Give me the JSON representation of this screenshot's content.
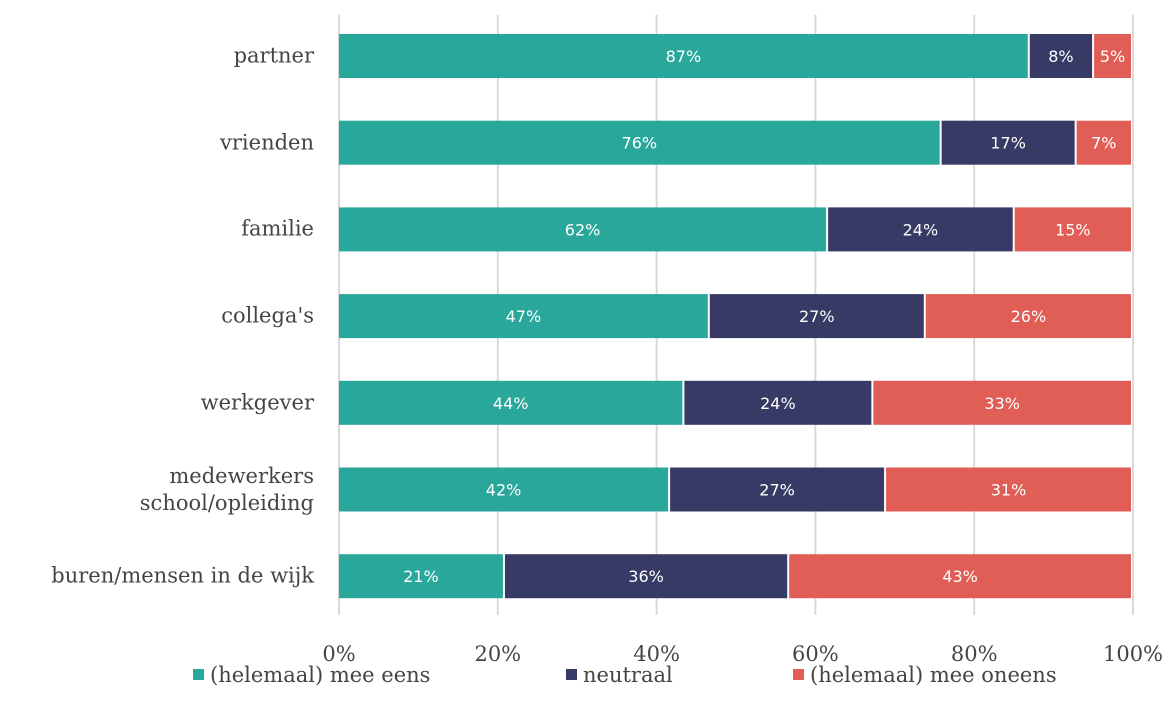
{
  "chart_data": {
    "type": "stacked-bar-horizontal",
    "categories": [
      "partner",
      "vrienden",
      "familie",
      "collega's",
      "werkgever",
      "medewerkers school/opleiding",
      "buren/mensen in de wijk"
    ],
    "series": [
      {
        "name": "(helemaal) mee eens",
        "color": "#2aa79b",
        "values": [
          87.0,
          75.9,
          61.6,
          46.7,
          43.5,
          41.7,
          20.9
        ],
        "value_labels": [
          "87%",
          "76%",
          "62%",
          "47%",
          "44%",
          "42%",
          "21%"
        ]
      },
      {
        "name": "neutraal",
        "color": "#363a64",
        "values": [
          8.1,
          17.0,
          23.5,
          27.2,
          23.8,
          27.2,
          35.8
        ],
        "value_labels": [
          "8%",
          "17%",
          "24%",
          "27%",
          "24%",
          "27%",
          "36%"
        ]
      },
      {
        "name": "(helemaal) mee oneens",
        "color": "#e05e55",
        "values": [
          4.9,
          7.1,
          14.9,
          26.1,
          32.7,
          31.1,
          43.3
        ],
        "value_labels": [
          "5%",
          "7%",
          "15%",
          "26%",
          "33%",
          "31%",
          "43%"
        ]
      }
    ],
    "xlim": [
      0,
      100
    ],
    "xticks": [
      {
        "value": 0,
        "label": "0%"
      },
      {
        "value": 20,
        "label": "20%"
      },
      {
        "value": 40,
        "label": "40%"
      },
      {
        "value": 60,
        "label": "60%"
      },
      {
        "value": 80,
        "label": "80%"
      },
      {
        "value": 100,
        "label": "100%"
      }
    ],
    "grid": true,
    "legend": "bottom"
  }
}
